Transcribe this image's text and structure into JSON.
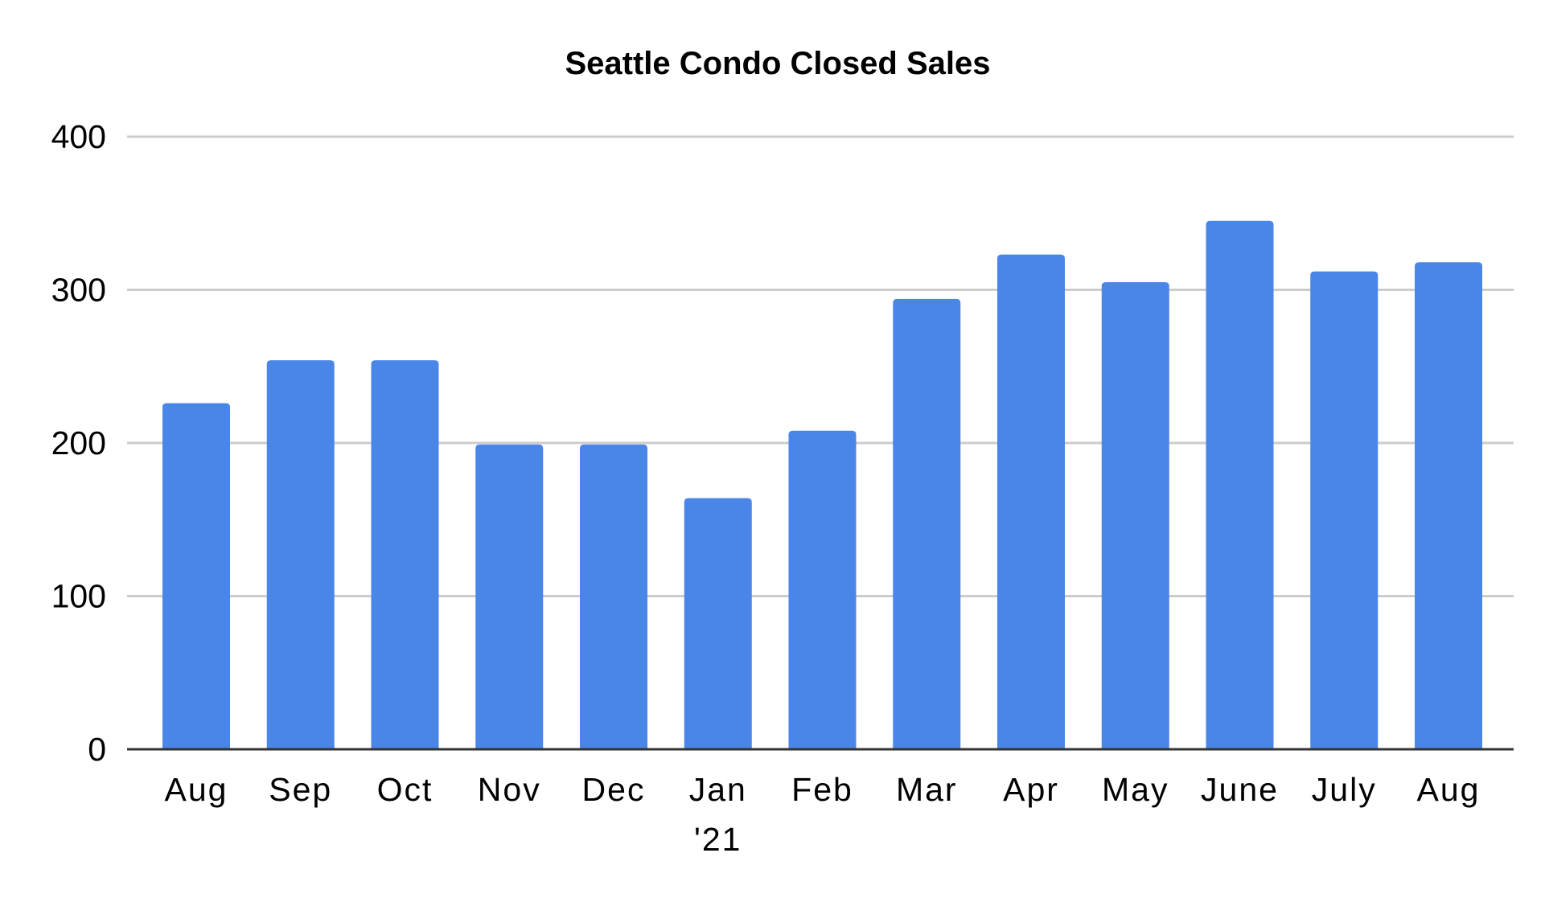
{
  "chart_data": {
    "type": "bar",
    "title": "Seattle Condo Closed Sales",
    "xlabel": "",
    "ylabel": "",
    "categories": [
      "Aug",
      "Sep",
      "Oct",
      "Nov",
      "Dec",
      "Jan",
      "Feb",
      "Mar",
      "Apr",
      "May",
      "June",
      "July",
      "Aug"
    ],
    "category_sublabels": [
      "",
      "",
      "",
      "",
      "",
      "'21",
      "",
      "",
      "",
      "",
      "",
      "",
      ""
    ],
    "values": [
      226,
      254,
      254,
      199,
      199,
      164,
      208,
      294,
      323,
      305,
      345,
      312,
      318
    ],
    "ylim": [
      0,
      400
    ],
    "yticks": [
      0,
      100,
      200,
      300,
      400
    ],
    "grid": true,
    "legend": "none",
    "bar_color": "#4a86e8"
  }
}
